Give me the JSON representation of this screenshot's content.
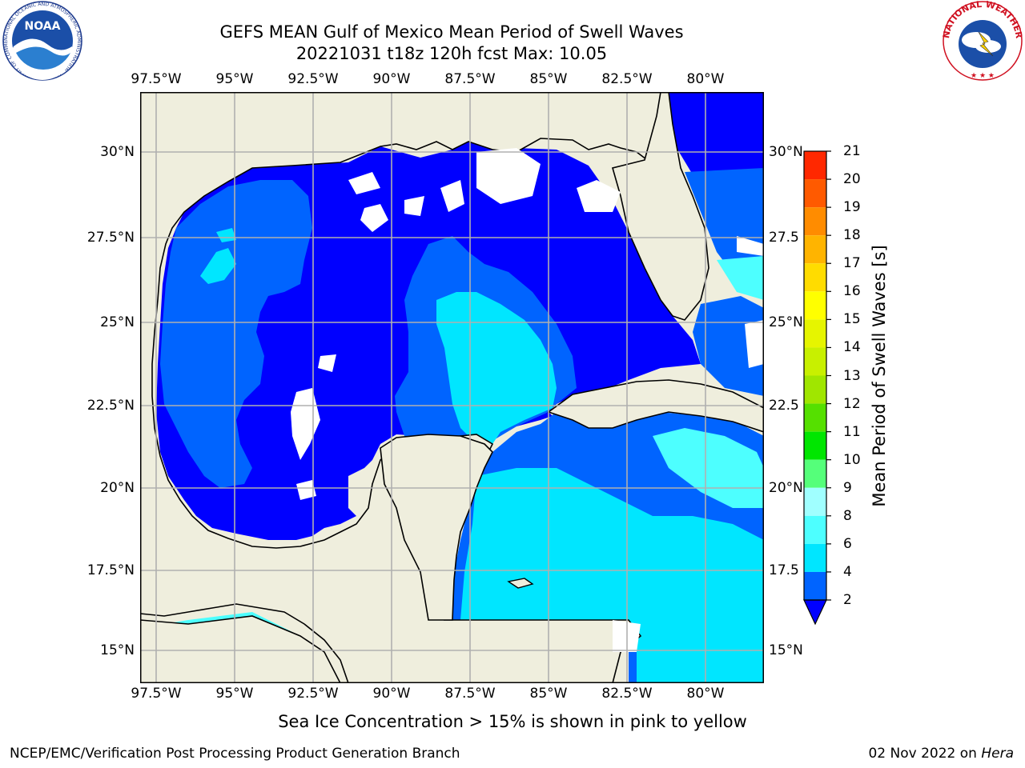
{
  "header": {
    "title_line1": "GEFS MEAN Gulf of Mexico Mean Period of Swell Waves",
    "title_line2": "20221031 t18z 120h fcst   Max: 10.05"
  },
  "map": {
    "lon_labels": [
      "97.5°W",
      "95°W",
      "92.5°W",
      "90°W",
      "87.5°W",
      "85°W",
      "82.5°W",
      "80°W"
    ],
    "lat_labels_left": [
      "30°N",
      "27.5°N",
      "25°N",
      "22.5°N",
      "20°N",
      "17.5°N",
      "15°N"
    ],
    "lat_labels_right": [
      "30°N",
      "27.5",
      "25°N",
      "22.5",
      "20°N",
      "17.5",
      "15°N"
    ]
  },
  "colorbar": {
    "title": "Mean Period of Swell Waves [s]",
    "levels": [
      2,
      4,
      6,
      8,
      9,
      10,
      11,
      12,
      13,
      14,
      15,
      16,
      17,
      18,
      19,
      20,
      21
    ],
    "colors": [
      "#0000ff",
      "#0064ff",
      "#00e6ff",
      "#4dffff",
      "#a0ffff",
      "#55ff7a",
      "#00e600",
      "#55e000",
      "#a0e600",
      "#c8f000",
      "#e6f500",
      "#ffff00",
      "#ffdc00",
      "#ffb400",
      "#ff8c00",
      "#ff5a00",
      "#ff2800",
      "#ff0000"
    ]
  },
  "note": "Sea Ice Concentration > 15% is shown in pink to yellow",
  "footer": {
    "left": "NCEP/EMC/Verification Post Processing Product Generation Branch",
    "right_date": "02 Nov 2022 on",
    "right_host": "Hera"
  },
  "logos": {
    "left": "NOAA",
    "left_ring": "NATIONAL OCEANIC AND ATMOSPHERIC ADMINISTRATION · U.S. DEPARTMENT OF COMMERCE",
    "right_ring": "NATIONAL WEATHER SERVICE"
  }
}
